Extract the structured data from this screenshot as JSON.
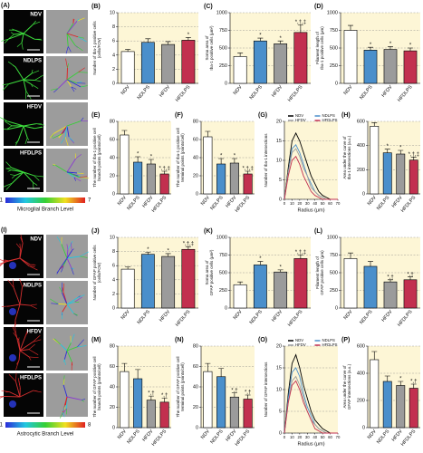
{
  "chart_data": [
    {
      "panel": "(B)",
      "type": "bar",
      "categories": [
        "NDV",
        "NDLPS",
        "HFDV",
        "HFDLPS"
      ],
      "values": [
        4.5,
        5.8,
        5.5,
        6.1
      ],
      "errors": [
        0.3,
        0.5,
        0.4,
        0.4
      ],
      "colors": [
        "#ffffff",
        "#4a8fcb",
        "#9b9b9b",
        "#c2304f"
      ],
      "annotations": [
        null,
        null,
        null,
        "*"
      ],
      "ylabel_lines": [
        "Number of Iba-1 positive cells",
        "(cells/FOV)"
      ],
      "ylim": [
        0,
        10
      ],
      "yticks": [
        0,
        2,
        4,
        6,
        8,
        10
      ],
      "grid": true
    },
    {
      "panel": "(C)",
      "type": "bar",
      "categories": [
        "NDV",
        "NDLPS",
        "HFDV",
        "HFDLPS"
      ],
      "values": [
        380,
        600,
        560,
        720
      ],
      "errors": [
        50,
        40,
        40,
        110
      ],
      "colors": [
        "#ffffff",
        "#4a8fcb",
        "#9b9b9b",
        "#c2304f"
      ],
      "annotations": [
        null,
        "*",
        "*",
        "*,†,‡"
      ],
      "ylabel_lines": [
        "Soma area of",
        "Iba-1 positive cells (μm²)"
      ],
      "ylim": [
        0,
        1000
      ],
      "yticks": [
        0,
        250,
        500,
        750,
        1000
      ],
      "grid": true
    },
    {
      "panel": "(D)",
      "type": "bar",
      "categories": [
        "NDV",
        "NDLPS",
        "HFDV",
        "HFDLPS"
      ],
      "values": [
        750,
        470,
        480,
        460
      ],
      "errors": [
        70,
        40,
        40,
        40
      ],
      "colors": [
        "#ffffff",
        "#4a8fcb",
        "#9b9b9b",
        "#c2304f"
      ],
      "annotations": [
        null,
        "*",
        "*",
        "*"
      ],
      "ylabel_lines": [
        "Filament length of",
        "Iba-1 positive cells (μm)"
      ],
      "ylim": [
        0,
        1000
      ],
      "yticks": [
        0,
        250,
        500,
        750,
        1000
      ],
      "grid": true
    },
    {
      "panel": "(E)",
      "type": "bar",
      "categories": [
        "NDV",
        "NDLPS",
        "HFDV",
        "HFDLPS"
      ],
      "values": [
        65,
        35,
        33,
        22
      ],
      "errors": [
        5,
        6,
        5,
        3
      ],
      "colors": [
        "#ffffff",
        "#4a8fcb",
        "#9b9b9b",
        "#c2304f"
      ],
      "annotations": [
        null,
        "*",
        "*",
        "*,†,‡"
      ],
      "ylabel_lines": [
        "The number of Iba-1 positive cell",
        "branch points (points/cell)"
      ],
      "ylim": [
        0,
        80
      ],
      "yticks": [
        0,
        20,
        40,
        60,
        80
      ],
      "grid": true
    },
    {
      "panel": "(F)",
      "type": "bar",
      "categories": [
        "NDV",
        "NDLPS",
        "HFDV",
        "HFDLPS"
      ],
      "values": [
        63,
        33,
        34,
        22
      ],
      "errors": [
        6,
        6,
        5,
        3
      ],
      "colors": [
        "#ffffff",
        "#4a8fcb",
        "#9b9b9b",
        "#c2304f"
      ],
      "annotations": [
        null,
        "*",
        "*",
        "*,†,‡"
      ],
      "ylabel_lines": [
        "The number of Iba-1 positive cell",
        "terminal points (points/cell)"
      ],
      "ylim": [
        0,
        80
      ],
      "yticks": [
        0,
        20,
        40,
        60,
        80
      ],
      "grid": true
    },
    {
      "panel": "(G)",
      "type": "line",
      "x": [
        0,
        5,
        10,
        15,
        20,
        25,
        30,
        35,
        40,
        45,
        50,
        55,
        60,
        65,
        70
      ],
      "series": [
        {
          "name": "NDV",
          "color": "#000000",
          "values": [
            0,
            8,
            15,
            17,
            15,
            12,
            9,
            6,
            4,
            2,
            1,
            0.5,
            0,
            0,
            0
          ]
        },
        {
          "name": "NDLPS",
          "color": "#4a8fcb",
          "values": [
            0,
            7,
            13,
            14,
            12,
            9,
            6,
            4,
            2,
            1,
            0.5,
            0,
            0,
            0,
            0
          ]
        },
        {
          "name": "HFDV",
          "color": "#9b9b9b",
          "values": [
            0,
            7,
            12,
            13,
            11,
            8,
            6,
            3,
            2,
            1,
            0.5,
            0,
            0,
            0,
            0
          ]
        },
        {
          "name": "HFDLPS",
          "color": "#c2304f",
          "values": [
            0,
            6,
            10,
            11,
            9,
            6,
            4,
            2,
            1,
            0.5,
            0,
            0,
            0,
            0,
            0
          ]
        }
      ],
      "xlabel": "Radius (μm)",
      "ylabel_lines": [
        "Number of Iba-1 intersections"
      ],
      "xlim": [
        0,
        70
      ],
      "xticks": [
        0,
        10,
        20,
        30,
        40,
        50,
        60,
        70
      ],
      "ylim": [
        0,
        20
      ],
      "yticks": [
        0,
        5,
        10,
        15,
        20
      ],
      "grid": true
    },
    {
      "panel": "(H)",
      "type": "bar",
      "categories": [
        "NDV",
        "NDLPS",
        "HFDV",
        "HFDLPS"
      ],
      "values": [
        560,
        340,
        330,
        280
      ],
      "errors": [
        30,
        30,
        30,
        25
      ],
      "colors": [
        "#ffffff",
        "#4a8fcb",
        "#9b9b9b",
        "#c2304f"
      ],
      "annotations": [
        null,
        "*",
        "*",
        "*,†,‡"
      ],
      "ylabel_lines": [
        "Area under the curve of",
        "Iba-1 intersections (a.u.)"
      ],
      "ylim": [
        0,
        600
      ],
      "yticks": [
        0,
        200,
        400,
        600
      ],
      "grid": true
    },
    {
      "panel": "(J)",
      "type": "bar",
      "categories": [
        "NDV",
        "NDLPS",
        "HFDV",
        "HFDLPS"
      ],
      "values": [
        5.5,
        7.6,
        7.3,
        8.3
      ],
      "errors": [
        0.3,
        0.3,
        0.4,
        0.4
      ],
      "colors": [
        "#ffffff",
        "#4a8fcb",
        "#9b9b9b",
        "#c2304f"
      ],
      "annotations": [
        null,
        "*",
        "*",
        "*,†,‡"
      ],
      "ylabel_lines": [
        "Number of GFAP positive cells",
        "(cells/FOV)"
      ],
      "ylim": [
        0,
        10
      ],
      "yticks": [
        0,
        2,
        4,
        6,
        8,
        10
      ],
      "grid": true
    },
    {
      "panel": "(K)",
      "type": "bar",
      "categories": [
        "NDV",
        "NDLPS",
        "HFDV",
        "HFDLPS"
      ],
      "values": [
        330,
        610,
        510,
        700
      ],
      "errors": [
        40,
        50,
        30,
        50
      ],
      "colors": [
        "#ffffff",
        "#4a8fcb",
        "#9b9b9b",
        "#c2304f"
      ],
      "annotations": [
        null,
        "*",
        "*",
        "*,†,‡"
      ],
      "ylabel_lines": [
        "Soma area of",
        "GFAP positive cells (μm²)"
      ],
      "ylim": [
        0,
        1000
      ],
      "yticks": [
        0,
        250,
        500,
        750,
        1000
      ],
      "grid": true
    },
    {
      "panel": "(L)",
      "type": "bar",
      "categories": [
        "NDV",
        "NDLPS",
        "HFDV",
        "HFDLPS"
      ],
      "values": [
        700,
        590,
        370,
        400
      ],
      "errors": [
        80,
        70,
        30,
        40
      ],
      "colors": [
        "#ffffff",
        "#4a8fcb",
        "#9b9b9b",
        "#c2304f"
      ],
      "annotations": [
        null,
        null,
        "*,†",
        "*,†"
      ],
      "ylabel_lines": [
        "Filament length of",
        "GFAP positive cells (μm)"
      ],
      "ylim": [
        0,
        1000
      ],
      "yticks": [
        0,
        250,
        500,
        750,
        1000
      ],
      "grid": true
    },
    {
      "panel": "(M)",
      "type": "bar",
      "categories": [
        "NDV",
        "NDLPS",
        "HFDV",
        "HFDLPS"
      ],
      "values": [
        55,
        48,
        27,
        25
      ],
      "errors": [
        8,
        9,
        4,
        4
      ],
      "colors": [
        "#ffffff",
        "#4a8fcb",
        "#9b9b9b",
        "#c2304f"
      ],
      "annotations": [
        null,
        null,
        "*,†",
        "*,†"
      ],
      "ylabel_lines": [
        "The number of GFAP positive cell",
        "branch points (points/cell)"
      ],
      "ylim": [
        0,
        80
      ],
      "yticks": [
        0,
        20,
        40,
        60,
        80
      ],
      "grid": true
    },
    {
      "panel": "(N)",
      "type": "bar",
      "categories": [
        "NDV",
        "NDLPS",
        "HFDV",
        "HFDLPS"
      ],
      "values": [
        55,
        50,
        30,
        28
      ],
      "errors": [
        8,
        8,
        4,
        4
      ],
      "colors": [
        "#ffffff",
        "#4a8fcb",
        "#9b9b9b",
        "#c2304f"
      ],
      "annotations": [
        null,
        null,
        "*,†",
        "*,†"
      ],
      "ylabel_lines": [
        "The number of GFAP positive cell",
        "terminal points (points/cell)"
      ],
      "ylim": [
        0,
        80
      ],
      "yticks": [
        0,
        20,
        40,
        60,
        80
      ],
      "grid": true
    },
    {
      "panel": "(O)",
      "type": "line",
      "x": [
        0,
        5,
        10,
        15,
        20,
        25,
        30,
        35,
        40,
        45,
        50,
        55,
        60,
        65,
        70
      ],
      "series": [
        {
          "name": "NDV",
          "color": "#000000",
          "values": [
            0,
            9,
            16,
            18,
            15,
            11,
            8,
            5,
            3,
            2,
            1,
            0.5,
            0,
            0,
            0
          ]
        },
        {
          "name": "NDLPS",
          "color": "#4a8fcb",
          "values": [
            0,
            8,
            14,
            15,
            13,
            9,
            6,
            4,
            2,
            1,
            0.5,
            0,
            0,
            0,
            0
          ]
        },
        {
          "name": "HFDV",
          "color": "#9b9b9b",
          "values": [
            0,
            7,
            12,
            13,
            11,
            8,
            5,
            3,
            2,
            1,
            0.5,
            0,
            0,
            0,
            0
          ]
        },
        {
          "name": "HFDLPS",
          "color": "#c2304f",
          "values": [
            0,
            7,
            11,
            12,
            10,
            7,
            5,
            3,
            1,
            0.5,
            0,
            0,
            0,
            0,
            0
          ]
        }
      ],
      "xlabel": "Radius (μm)",
      "ylabel_lines": [
        "Number of GFAP intersections"
      ],
      "xlim": [
        0,
        70
      ],
      "xticks": [
        0,
        10,
        20,
        30,
        40,
        50,
        60,
        70
      ],
      "ylim": [
        0,
        20
      ],
      "yticks": [
        0,
        5,
        10,
        15,
        20
      ],
      "grid": true
    },
    {
      "panel": "(P)",
      "type": "bar",
      "categories": [
        "NDV",
        "NDLPS",
        "HFDV",
        "HFDLPS"
      ],
      "values": [
        500,
        340,
        310,
        290
      ],
      "errors": [
        60,
        40,
        30,
        30
      ],
      "colors": [
        "#ffffff",
        "#4a8fcb",
        "#9b9b9b",
        "#c2304f"
      ],
      "annotations": [
        null,
        null,
        "*",
        "*,†"
      ],
      "ylabel_lines": [
        "Area under the curve of",
        "GFAP intersections (a.u.)"
      ],
      "ylim": [
        0,
        600
      ],
      "yticks": [
        0,
        200,
        400,
        600
      ],
      "grid": true
    }
  ],
  "image_panels": [
    {
      "panel": "(A)",
      "labels": [
        "NDV",
        "NDLPS",
        "HFDV",
        "HFDLPS"
      ],
      "colorbar_label": "Microglial Branch Level",
      "colorbar_ticks": [
        1,
        7
      ]
    },
    {
      "panel": "(I)",
      "labels": [
        "NDV",
        "NDLPS",
        "HFDV",
        "HFDLPS"
      ],
      "colorbar_label": "Astrocytic Branch Level",
      "colorbar_ticks": [
        1,
        8
      ]
    }
  ]
}
